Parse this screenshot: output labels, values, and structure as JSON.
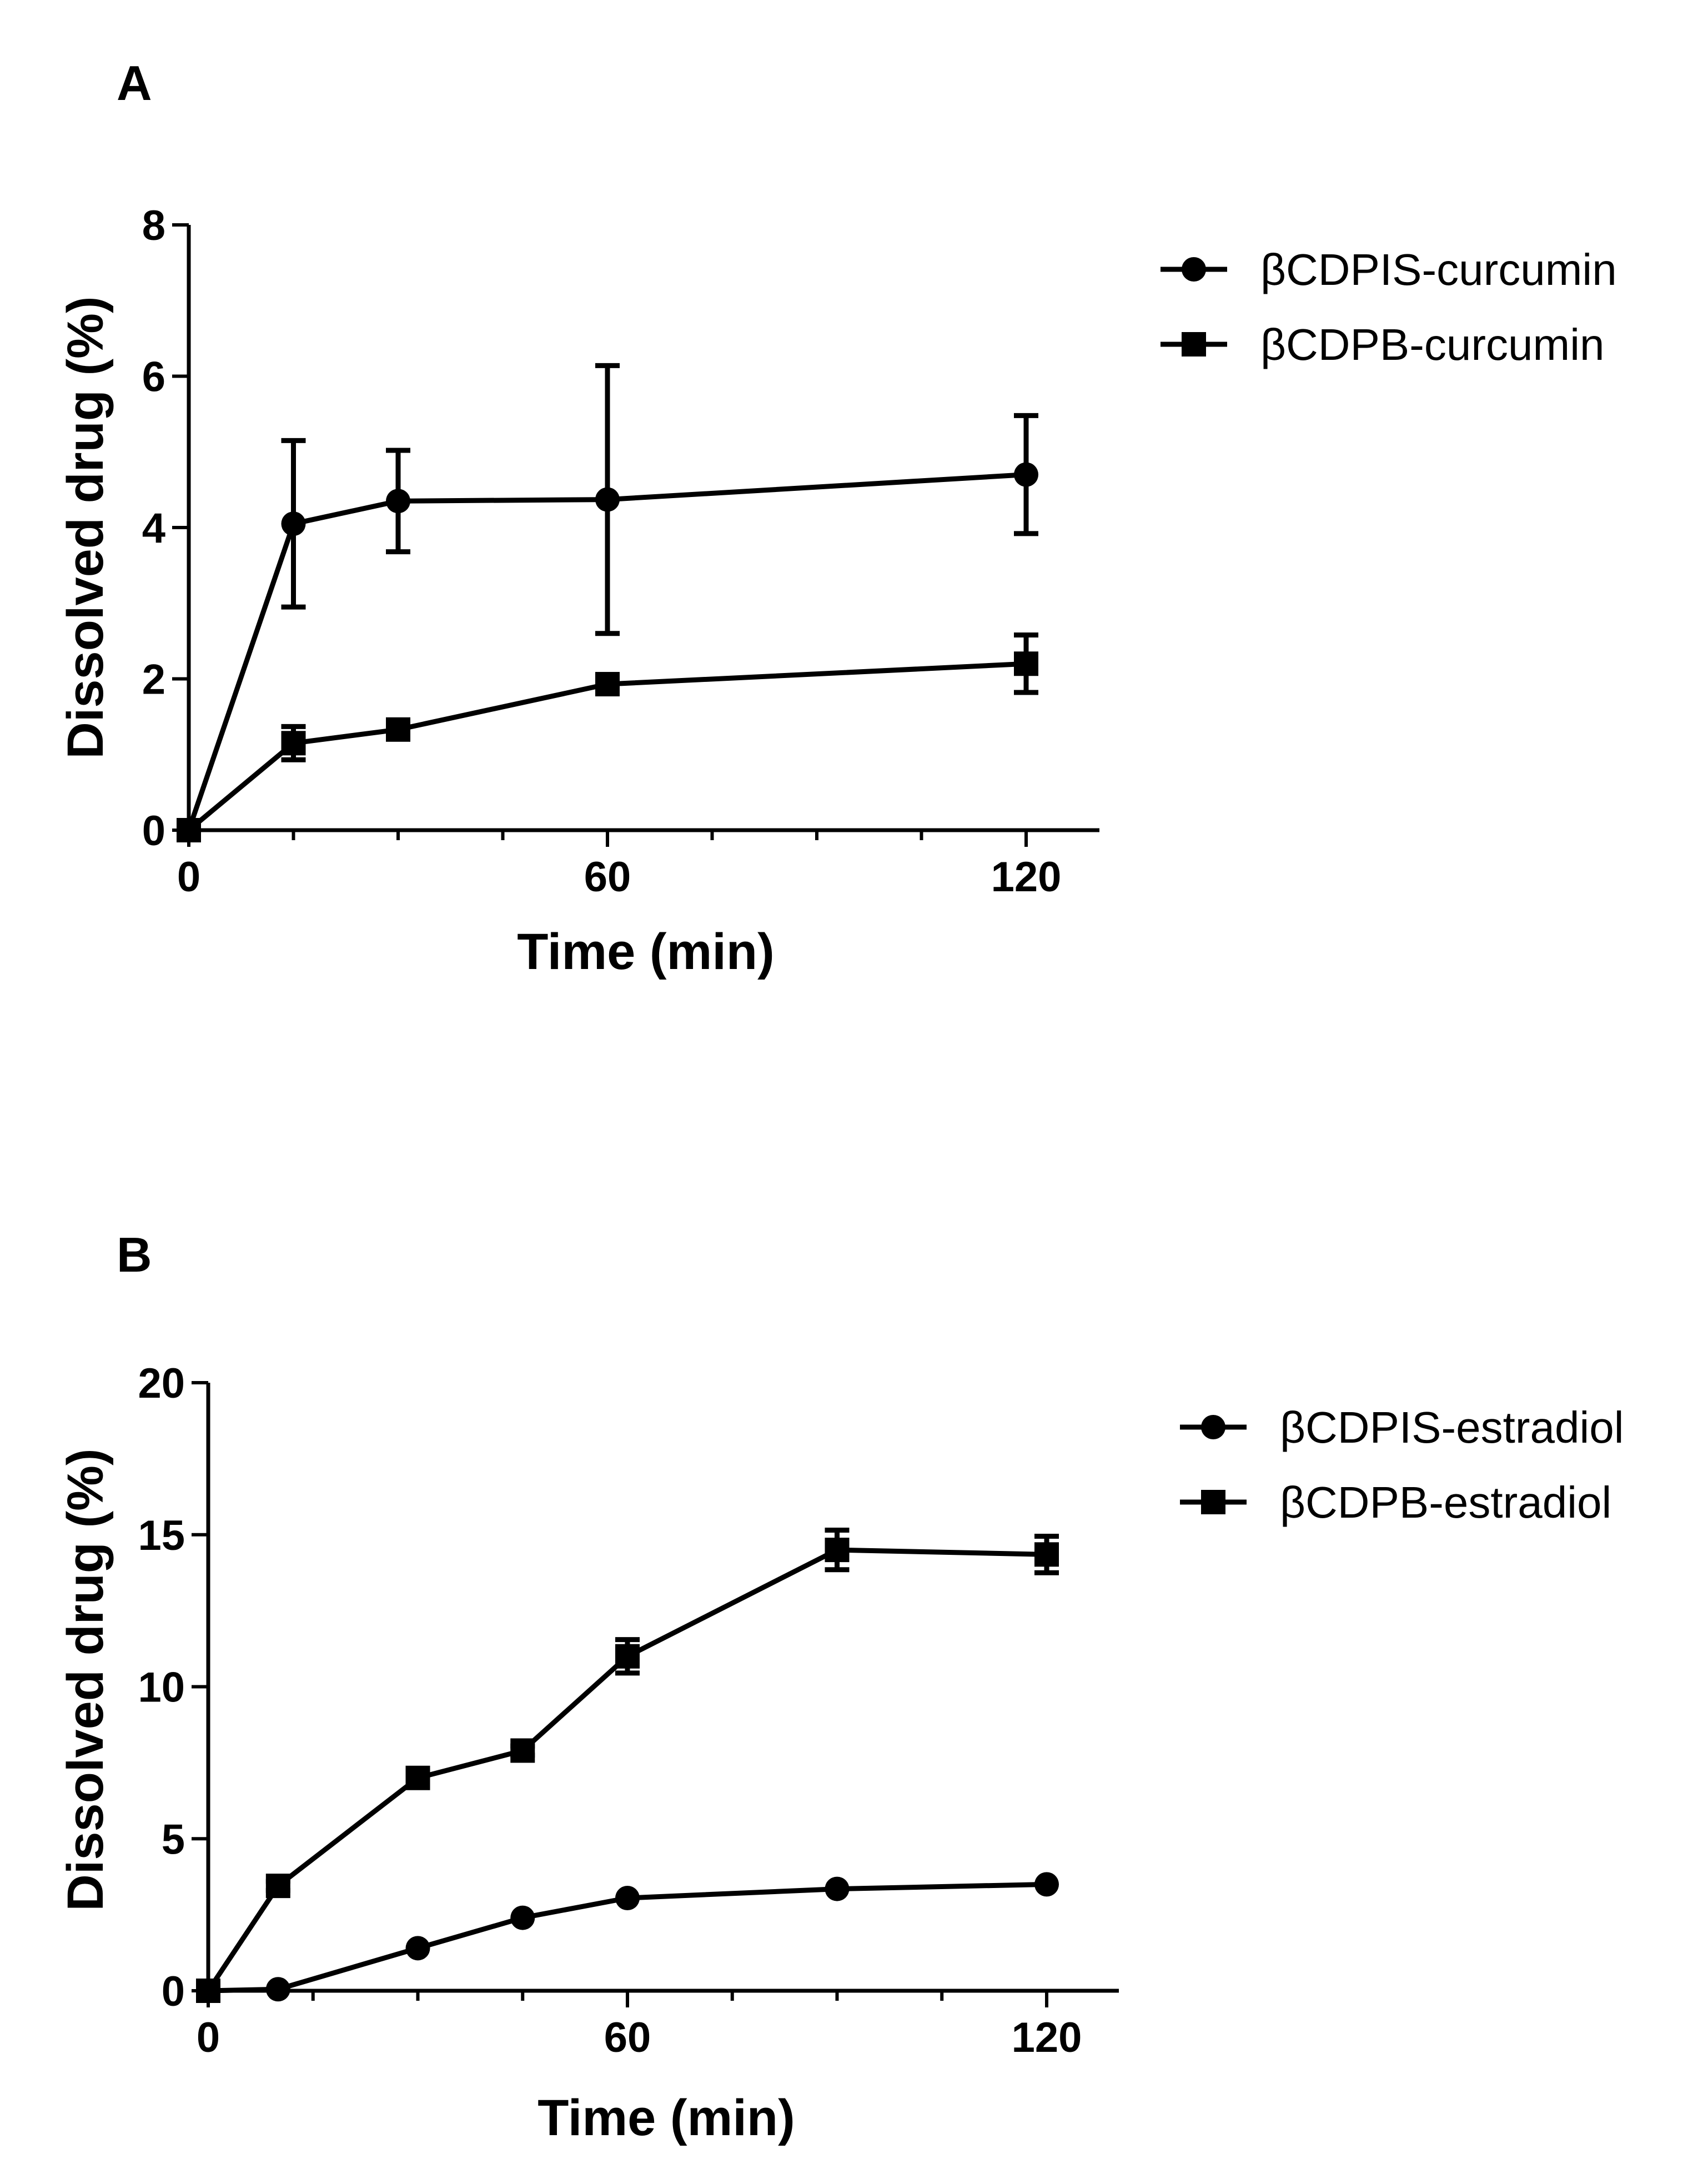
{
  "chart_data": [
    {
      "panel": "A",
      "type": "line",
      "xlabel": "Time (min)",
      "ylabel": "Dissolved drug (%)",
      "xlim": [
        0,
        130
      ],
      "ylim": [
        0,
        8
      ],
      "xticks": [
        0,
        60,
        120
      ],
      "yticks": [
        0,
        2,
        4,
        6,
        8
      ],
      "legend": "top-right",
      "series": [
        {
          "name": "βCDPIS-curcumin",
          "marker": "circle",
          "x": [
            0,
            15,
            30,
            60,
            120
          ],
          "y": [
            0,
            4.05,
            4.35,
            4.37,
            4.7
          ],
          "err": [
            0,
            1.1,
            0.67,
            1.77,
            0.78
          ]
        },
        {
          "name": "βCDPB-curcumin",
          "marker": "square",
          "x": [
            0,
            15,
            30,
            60,
            120
          ],
          "y": [
            0,
            1.15,
            1.33,
            1.93,
            2.2
          ],
          "err": [
            0,
            0.22,
            0.07,
            0.1,
            0.38
          ]
        }
      ]
    },
    {
      "panel": "B",
      "type": "line",
      "xlabel": "Time (min)",
      "ylabel": "Dissolved drug (%)",
      "xlim": [
        0,
        130
      ],
      "ylim": [
        0,
        20
      ],
      "xticks": [
        0,
        60,
        120
      ],
      "yticks": [
        0,
        5,
        10,
        15,
        20
      ],
      "legend": "top-right",
      "series": [
        {
          "name": "βCDPIS-estradiol",
          "marker": "circle",
          "x": [
            0,
            10,
            30,
            45,
            60,
            90,
            120
          ],
          "y": [
            0,
            0.05,
            1.4,
            2.4,
            3.05,
            3.35,
            3.5
          ],
          "err": [
            0,
            0,
            0,
            0,
            0,
            0,
            0
          ]
        },
        {
          "name": "βCDPB-estradiol",
          "marker": "square",
          "x": [
            0,
            10,
            30,
            45,
            60,
            90,
            120
          ],
          "y": [
            0,
            3.45,
            7.0,
            7.9,
            11.0,
            14.5,
            14.35
          ],
          "err": [
            0,
            0.15,
            0.15,
            0.15,
            0.55,
            0.65,
            0.6
          ]
        }
      ]
    }
  ]
}
